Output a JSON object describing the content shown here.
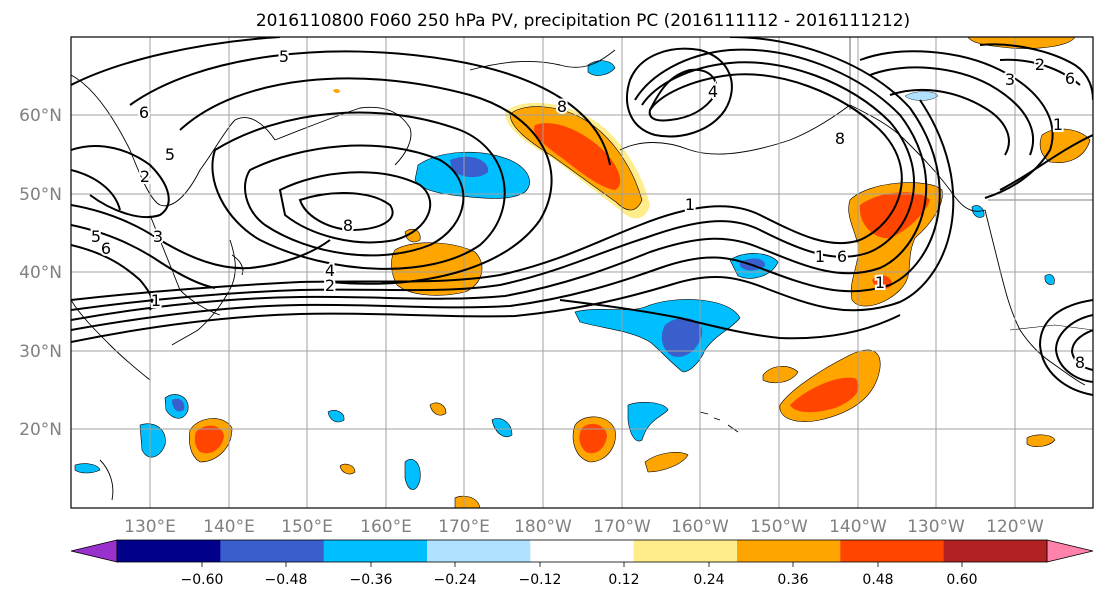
{
  "title": "2016110800 F060 250 hPa PV, precipitation PC (2016111112 - 2016111212)",
  "lat_labels": [
    "60°N",
    "50°N",
    "40°N",
    "30°N",
    "20°N"
  ],
  "lon_labels": [
    "130°E",
    "140°E",
    "150°E",
    "160°E",
    "170°E",
    "180°W",
    "170°W",
    "160°W",
    "150°W",
    "140°W",
    "130°W",
    "120°W"
  ],
  "colorbar": {
    "ticks": [
      "−0.60",
      "−0.48",
      "−0.36",
      "−0.24",
      "−0.12",
      "0.12",
      "0.24",
      "0.36",
      "0.48",
      "0.60"
    ],
    "colors": [
      "#9932cc",
      "#00008b",
      "#3a5fcd",
      "#00bfff",
      "#b0e2ff",
      "#ffffff",
      "#ffec8b",
      "#ffa500",
      "#ff4500",
      "#b22222",
      "#ff82ab"
    ]
  },
  "contour_labels": [
    "5",
    "6",
    "5",
    "2",
    "5",
    "6",
    "3",
    "1",
    "8",
    "4",
    "2",
    "8",
    "4",
    "1",
    "8",
    "1",
    "6",
    "1",
    "3",
    "2",
    "6",
    "1",
    "8"
  ],
  "colors": {
    "text": "#000000",
    "axis_label": "#808080",
    "grid": "#a0a0a0"
  }
}
